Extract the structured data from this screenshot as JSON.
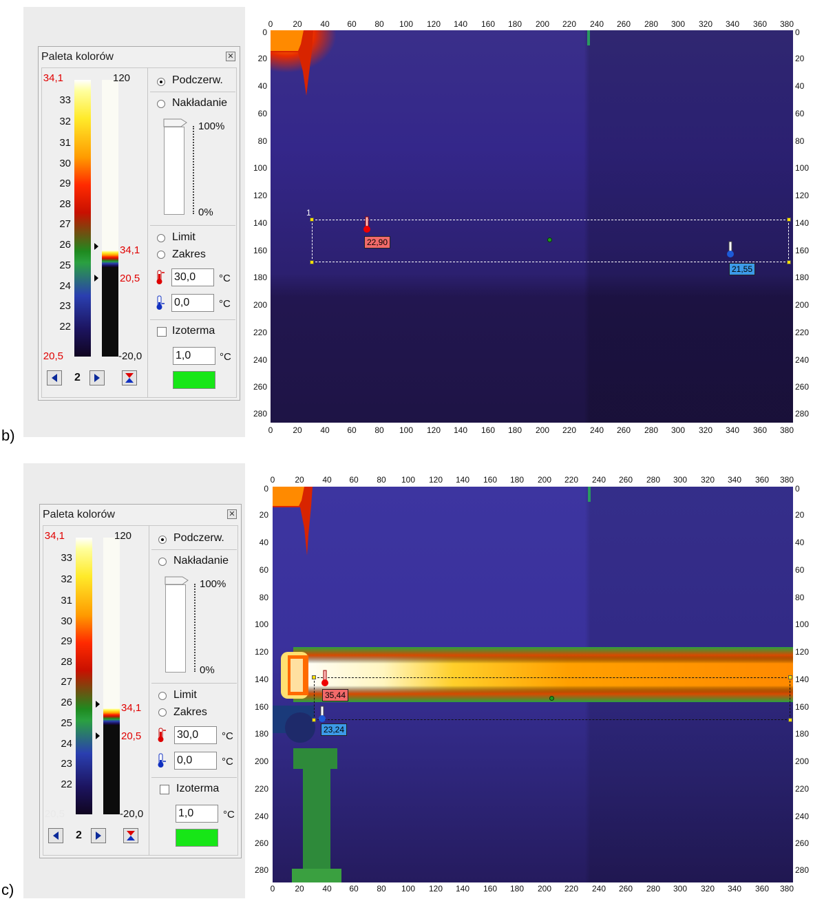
{
  "panel_b": {
    "label": "b)",
    "palette": {
      "title": "Paleta kolorów",
      "top_value": "34,1",
      "bottom_value": "20,5",
      "scale_labels": [
        "33",
        "32",
        "31",
        "30",
        "29",
        "28",
        "27",
        "26",
        "25",
        "24",
        "23",
        "22"
      ],
      "range_top": "120",
      "range_bottom": "-20,0",
      "range_high_marker": "34,1",
      "range_low_marker": "20,5",
      "mode_infrared": "Podczerw.",
      "mode_overlay": "Nakładanie",
      "opacity_top": "100%",
      "opacity_bottom": "0%",
      "limit_label": "Limit",
      "range_label": "Zakres",
      "max_temp": "30,0",
      "min_temp": "0,0",
      "unit": "°C",
      "isotherm_label": "Izoterma",
      "isotherm_value": "1,0",
      "palette_number": "2",
      "isotherm_color": "#17e617"
    },
    "image": {
      "x_ticks": [
        "0",
        "20",
        "40",
        "60",
        "80",
        "100",
        "120",
        "140",
        "160",
        "180",
        "200",
        "220",
        "240",
        "260",
        "280",
        "300",
        "320",
        "340",
        "360",
        "380"
      ],
      "y_ticks": [
        "0",
        "20",
        "40",
        "60",
        "80",
        "100",
        "120",
        "140",
        "160",
        "180",
        "200",
        "220",
        "240",
        "260",
        "280"
      ],
      "roi_label": "1",
      "max_readout": "22,90",
      "min_readout": "21,55"
    }
  },
  "panel_c": {
    "label": "c)",
    "palette": {
      "title": "Paleta kolorów",
      "top_value": "34,1",
      "bottom_value": "20,5",
      "scale_labels": [
        "33",
        "32",
        "31",
        "30",
        "29",
        "28",
        "27",
        "26",
        "25",
        "24",
        "23",
        "22"
      ],
      "range_top": "120",
      "range_bottom": "-20,0",
      "range_high_marker": "34,1",
      "range_low_marker": "20,5",
      "mode_infrared": "Podczerw.",
      "mode_overlay": "Nakładanie",
      "opacity_top": "100%",
      "opacity_bottom": "0%",
      "limit_label": "Limit",
      "range_label": "Zakres",
      "max_temp": "30,0",
      "min_temp": "0,0",
      "unit": "°C",
      "isotherm_label": "Izoterma",
      "isotherm_value": "1,0",
      "palette_number": "2",
      "isotherm_color": "#17e617"
    },
    "image": {
      "x_ticks": [
        "0",
        "20",
        "40",
        "60",
        "80",
        "100",
        "120",
        "140",
        "160",
        "180",
        "200",
        "220",
        "240",
        "260",
        "280",
        "300",
        "320",
        "340",
        "360",
        "380"
      ],
      "y_ticks": [
        "0",
        "20",
        "40",
        "60",
        "80",
        "100",
        "120",
        "140",
        "160",
        "180",
        "200",
        "220",
        "240",
        "260",
        "280"
      ],
      "max_readout": "35,44",
      "min_readout": "23,24"
    }
  }
}
